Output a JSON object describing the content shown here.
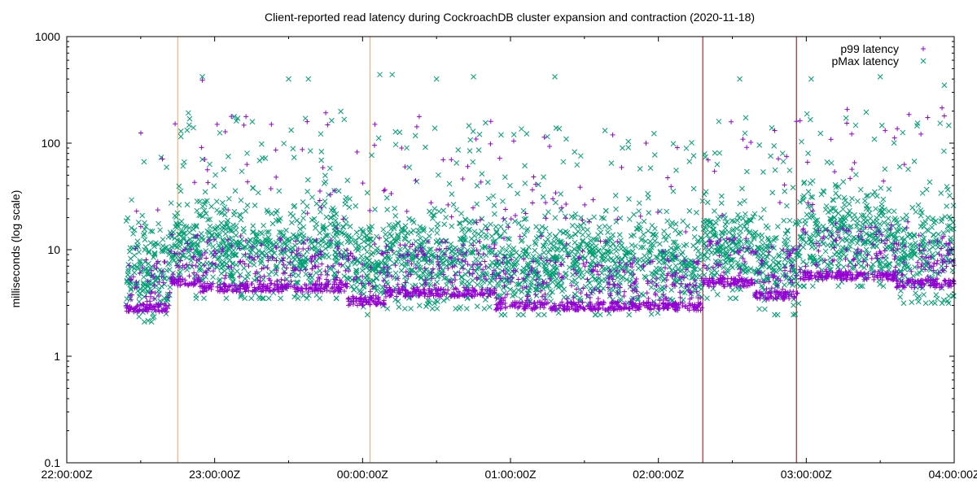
{
  "chart_data": {
    "type": "scatter",
    "title": "Client-reported read latency during CockroachDB cluster expansion and contraction (2020-11-18)",
    "xlabel": "",
    "ylabel": "milliseconds (log scale)",
    "y_scale": "log",
    "ylim": [
      0.1,
      1000
    ],
    "y_ticks": [
      {
        "value": 0.1,
        "label": "0.1"
      },
      {
        "value": 1,
        "label": "1"
      },
      {
        "value": 10,
        "label": "10"
      },
      {
        "value": 100,
        "label": "100"
      },
      {
        "value": 1000,
        "label": "1000"
      }
    ],
    "x_scale": "time",
    "xlim": [
      "2020-11-18T22:00:00Z",
      "2020-11-19T04:00:00Z"
    ],
    "x_ticks": [
      {
        "value": "2020-11-18T22:00:00Z",
        "label": "22:00:00Z"
      },
      {
        "value": "2020-11-18T23:00:00Z",
        "label": "23:00:00Z"
      },
      {
        "value": "2020-11-19T00:00:00Z",
        "label": "00:00:00Z"
      },
      {
        "value": "2020-11-19T01:00:00Z",
        "label": "01:00:00Z"
      },
      {
        "value": "2020-11-19T02:00:00Z",
        "label": "02:00:00Z"
      },
      {
        "value": "2020-11-19T03:00:00Z",
        "label": "03:00:00Z"
      },
      {
        "value": "2020-11-19T04:00:00Z",
        "label": "04:00:00Z"
      }
    ],
    "x_minor_ticks_per_major": 2,
    "grid": false,
    "legend_position": "top-right",
    "series": [
      {
        "name": "p99 latency",
        "marker": "plus",
        "color": "#9400d3",
        "segments": [
          {
            "start": "2020-11-18T22:24:00Z",
            "end": "2020-11-18T22:42:00Z",
            "baseline": 2.6
          },
          {
            "start": "2020-11-18T22:42:00Z",
            "end": "2020-11-18T22:54:00Z",
            "baseline": 4.6
          },
          {
            "start": "2020-11-18T22:54:00Z",
            "end": "2020-11-18T23:54:00Z",
            "baseline": 4.0
          },
          {
            "start": "2020-11-18T23:54:00Z",
            "end": "2020-11-19T00:09:00Z",
            "baseline": 3.0
          },
          {
            "start": "2020-11-19T00:09:00Z",
            "end": "2020-11-19T00:54:00Z",
            "baseline": 3.6
          },
          {
            "start": "2020-11-19T00:54:00Z",
            "end": "2020-11-19T02:18:00Z",
            "baseline": 2.7
          },
          {
            "start": "2020-11-19T02:18:00Z",
            "end": "2020-11-19T02:39:00Z",
            "baseline": 4.5
          },
          {
            "start": "2020-11-19T02:39:00Z",
            "end": "2020-11-19T02:57:00Z",
            "baseline": 3.4
          },
          {
            "start": "2020-11-19T02:57:00Z",
            "end": "2020-11-19T03:36:00Z",
            "baseline": 5.2
          },
          {
            "start": "2020-11-19T03:36:00Z",
            "end": "2020-11-19T04:00:00Z",
            "baseline": 4.4
          }
        ],
        "outliers": [
          {
            "x": "2020-11-18T22:55:00Z",
            "y": 390
          },
          {
            "x": "2020-11-18T23:01:00Z",
            "y": 150
          },
          {
            "x": "2020-11-19T00:05:00Z",
            "y": 150
          },
          {
            "x": "2020-11-19T00:36:00Z",
            "y": 70
          },
          {
            "x": "2020-11-19T00:52:00Z",
            "y": 160
          },
          {
            "x": "2020-11-19T01:55:00Z",
            "y": 100
          },
          {
            "x": "2020-11-19T02:56:00Z",
            "y": 160
          },
          {
            "x": "2020-11-19T03:56:00Z",
            "y": 180
          }
        ]
      },
      {
        "name": "pMax latency",
        "marker": "cross",
        "color": "#009e73",
        "segments": [
          {
            "start": "2020-11-18T22:24:00Z",
            "end": "2020-11-18T22:42:00Z",
            "baseline": 6
          },
          {
            "start": "2020-11-18T22:42:00Z",
            "end": "2020-11-18T23:54:00Z",
            "baseline": 10
          },
          {
            "start": "2020-11-18T23:54:00Z",
            "end": "2020-11-19T00:09:00Z",
            "baseline": 7
          },
          {
            "start": "2020-11-19T00:09:00Z",
            "end": "2020-11-19T00:54:00Z",
            "baseline": 8
          },
          {
            "start": "2020-11-19T00:54:00Z",
            "end": "2020-11-19T02:18:00Z",
            "baseline": 7
          },
          {
            "start": "2020-11-19T02:18:00Z",
            "end": "2020-11-19T02:39:00Z",
            "baseline": 10
          },
          {
            "start": "2020-11-19T02:39:00Z",
            "end": "2020-11-19T02:57:00Z",
            "baseline": 7
          },
          {
            "start": "2020-11-19T02:57:00Z",
            "end": "2020-11-19T03:36:00Z",
            "baseline": 13
          },
          {
            "start": "2020-11-19T03:36:00Z",
            "end": "2020-11-19T04:00:00Z",
            "baseline": 9
          }
        ],
        "outliers": [
          {
            "x": "2020-11-18T22:55:00Z",
            "y": 420
          },
          {
            "x": "2020-11-18T23:30:00Z",
            "y": 400
          },
          {
            "x": "2020-11-18T23:38:00Z",
            "y": 400
          },
          {
            "x": "2020-11-19T00:07:00Z",
            "y": 440
          },
          {
            "x": "2020-11-19T00:12:00Z",
            "y": 440
          },
          {
            "x": "2020-11-19T00:30:00Z",
            "y": 400
          },
          {
            "x": "2020-11-19T00:45:00Z",
            "y": 420
          },
          {
            "x": "2020-11-19T01:18:00Z",
            "y": 420
          },
          {
            "x": "2020-11-19T02:33:00Z",
            "y": 400
          },
          {
            "x": "2020-11-19T03:02:00Z",
            "y": 400
          },
          {
            "x": "2020-11-19T03:30:00Z",
            "y": 420
          },
          {
            "x": "2020-11-19T03:56:00Z",
            "y": 350
          }
        ]
      }
    ],
    "event_markers": [
      {
        "x": "2020-11-18T22:45:00Z",
        "color": "#f4a460"
      },
      {
        "x": "2020-11-19T00:03:00Z",
        "color": "#f4a460"
      },
      {
        "x": "2020-11-19T02:18:00Z",
        "color": "#8b0000"
      },
      {
        "x": "2020-11-19T02:56:00Z",
        "color": "#8b0000"
      }
    ]
  }
}
